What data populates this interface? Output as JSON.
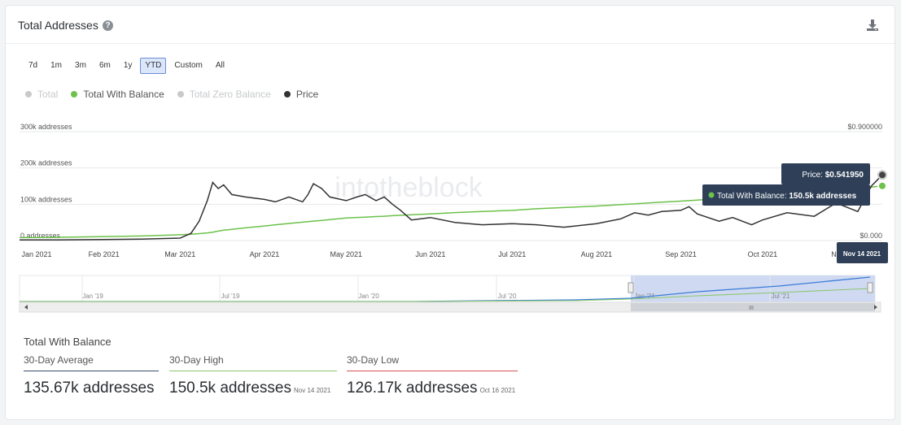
{
  "header": {
    "title": "Total Addresses",
    "help_icon": "question-circle-icon",
    "download_icon": "download-icon"
  },
  "ranges": [
    {
      "label": "7d",
      "active": false
    },
    {
      "label": "1m",
      "active": false
    },
    {
      "label": "3m",
      "active": false
    },
    {
      "label": "6m",
      "active": false
    },
    {
      "label": "1y",
      "active": false
    },
    {
      "label": "YTD",
      "active": true
    },
    {
      "label": "Custom",
      "active": false
    },
    {
      "label": "All",
      "active": false
    }
  ],
  "legend": [
    {
      "label": "Total",
      "color": "#c8cacc",
      "visible": false
    },
    {
      "label": "Total With Balance",
      "color": "#6cc24a",
      "visible": true
    },
    {
      "label": "Total Zero Balance",
      "color": "#c8cacc",
      "visible": false
    },
    {
      "label": "Price",
      "color": "#333333",
      "visible": true
    }
  ],
  "watermark": "intotheblock",
  "chart_data": {
    "type": "line",
    "x": [
      "2021-01-01",
      "2021-01-15",
      "2021-02-01",
      "2021-02-15",
      "2021-03-01",
      "2021-03-05",
      "2021-03-08",
      "2021-03-11",
      "2021-03-13",
      "2021-03-15",
      "2021-03-17",
      "2021-03-20",
      "2021-03-25",
      "2021-04-01",
      "2021-04-05",
      "2021-04-10",
      "2021-04-15",
      "2021-04-17",
      "2021-04-19",
      "2021-04-22",
      "2021-04-25",
      "2021-05-01",
      "2021-05-05",
      "2021-05-08",
      "2021-05-12",
      "2021-05-15",
      "2021-05-18",
      "2021-05-21",
      "2021-05-25",
      "2021-06-01",
      "2021-06-10",
      "2021-06-20",
      "2021-07-01",
      "2021-07-10",
      "2021-07-20",
      "2021-08-01",
      "2021-08-10",
      "2021-08-15",
      "2021-08-20",
      "2021-08-25",
      "2021-09-01",
      "2021-09-04",
      "2021-09-07",
      "2021-09-15",
      "2021-09-20",
      "2021-09-27",
      "2021-10-01",
      "2021-10-10",
      "2021-10-20",
      "2021-10-28",
      "2021-11-05",
      "2021-11-10",
      "2021-11-14"
    ],
    "xticks": [
      "Jan 2021",
      "Feb 2021",
      "Mar 2021",
      "Apr 2021",
      "May 2021",
      "Jun 2021",
      "Jul 2021",
      "Aug 2021",
      "Sep 2021",
      "Oct 2021",
      "Nov 2021"
    ],
    "series": [
      {
        "name": "Total With Balance",
        "axis": "left",
        "color": "#6cc24a",
        "values": [
          8000,
          9000,
          11000,
          12500,
          16000,
          17500,
          19000,
          21000,
          23000,
          26000,
          28500,
          31000,
          35000,
          40000,
          43500,
          47000,
          50500,
          52000,
          53500,
          55500,
          57500,
          62000,
          63500,
          64500,
          66000,
          67000,
          68500,
          69500,
          71000,
          73500,
          77000,
          80000,
          83000,
          87500,
          91000,
          95000,
          99000,
          101000,
          103500,
          106000,
          108500,
          110000,
          111500,
          115000,
          117000,
          120500,
          122500,
          127000,
          132000,
          137000,
          143000,
          147000,
          150500
        ]
      },
      {
        "name": "Price",
        "axis": "right",
        "color": "#333333",
        "values": [
          0.0045,
          0.005,
          0.008,
          0.012,
          0.02,
          0.06,
          0.16,
          0.33,
          0.48,
          0.43,
          0.46,
          0.38,
          0.36,
          0.34,
          0.32,
          0.36,
          0.32,
          0.38,
          0.47,
          0.43,
          0.36,
          0.33,
          0.36,
          0.38,
          0.33,
          0.36,
          0.3,
          0.25,
          0.17,
          0.19,
          0.15,
          0.13,
          0.14,
          0.13,
          0.11,
          0.14,
          0.18,
          0.23,
          0.21,
          0.24,
          0.25,
          0.28,
          0.22,
          0.16,
          0.19,
          0.13,
          0.17,
          0.23,
          0.2,
          0.31,
          0.24,
          0.45,
          0.542
        ]
      }
    ],
    "yaxis_left": {
      "ticks": [
        "0 addresses",
        "100k addresses",
        "200k addresses",
        "300k addresses"
      ],
      "ylim": [
        0,
        300000
      ]
    },
    "yaxis_right": {
      "ticks": [
        "$0.000",
        "",
        "",
        "$0.900000"
      ],
      "ylim": [
        0,
        0.9
      ]
    },
    "grid": true,
    "navigator": {
      "ticks": [
        "Jan '19",
        "Jul '19",
        "Jan '20",
        "Jul '20",
        "Jan '21",
        "Jul '21"
      ],
      "selection": [
        "2021-01-01",
        "2021-11-14"
      ]
    },
    "tooltip": {
      "price_label": "Price:",
      "price_value": "$0.541950",
      "balance_label": "Total With Balance:",
      "balance_value": "150.5k addresses",
      "date": "Nov 14 2021"
    }
  },
  "stats": {
    "title": "Total With Balance",
    "items": [
      {
        "label": "30-Day Average",
        "value": "135.67k addresses",
        "date": "",
        "color": "#3a4b6a"
      },
      {
        "label": "30-Day High",
        "value": "150.5k addresses",
        "date": "Nov 14 2021",
        "color": "#8cc66e"
      },
      {
        "label": "30-Day Low",
        "value": "126.17k addresses",
        "date": "Oct 16 2021",
        "color": "#d9534f"
      }
    ]
  }
}
